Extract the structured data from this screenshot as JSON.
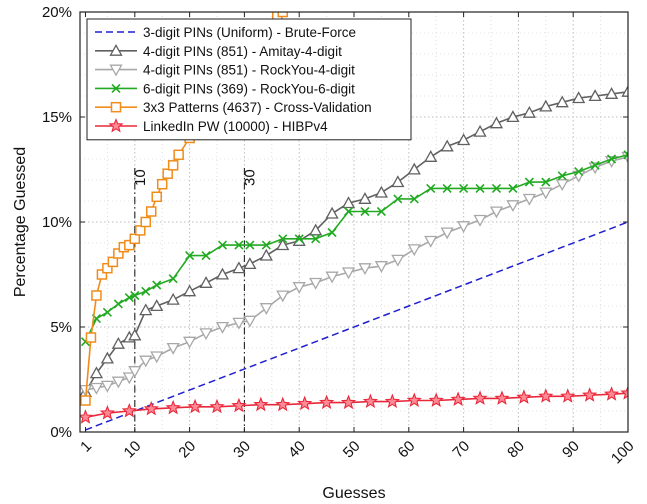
{
  "chart_data": {
    "type": "line",
    "xlabel": "Guesses",
    "ylabel": "Percentage Guessed",
    "xlim": [
      0,
      100
    ],
    "ylim": [
      0,
      20
    ],
    "x_ticks": [
      1,
      10,
      20,
      30,
      40,
      50,
      60,
      70,
      80,
      90,
      100
    ],
    "y_ticks": [
      0,
      5,
      10,
      15,
      20
    ],
    "y_tick_labels": [
      "0%",
      "5%",
      "10%",
      "15%",
      "20%"
    ],
    "grid": true,
    "legend_position": "top-left",
    "annotations": [
      {
        "x": 10,
        "text": "10"
      },
      {
        "x": 30,
        "text": "30"
      }
    ],
    "series": [
      {
        "name": "3-digit PINs (Uniform) - Brute-Force",
        "color": "#1f1fd0",
        "line": "dashed",
        "marker": "none",
        "x": [
          1,
          100
        ],
        "y": [
          0.1,
          10.0
        ]
      },
      {
        "name": "4-digit PINs (851) - Amitay-4-digit",
        "color": "#606060",
        "line": "solid",
        "marker": "triangle-up",
        "x": [
          1,
          3,
          5,
          7,
          9,
          10,
          12,
          14,
          17,
          20,
          23,
          26,
          29,
          31,
          34,
          37,
          40,
          43,
          46,
          49,
          52,
          55,
          58,
          61,
          64,
          67,
          70,
          73,
          76,
          79,
          82,
          85,
          88,
          91,
          94,
          97,
          100
        ],
        "y": [
          1.9,
          2.8,
          3.5,
          4.2,
          4.5,
          4.6,
          5.8,
          6.0,
          6.3,
          6.7,
          7.1,
          7.5,
          7.8,
          8.0,
          8.4,
          8.9,
          9.1,
          9.6,
          10.4,
          10.9,
          11.1,
          11.4,
          11.9,
          12.5,
          13.1,
          13.6,
          13.9,
          14.3,
          14.7,
          15.0,
          15.2,
          15.5,
          15.7,
          15.9,
          16.0,
          16.1,
          16.2
        ]
      },
      {
        "name": "4-digit PINs (851) - RockYou-4-digit",
        "color": "#a8a8a8",
        "line": "solid",
        "marker": "triangle-down",
        "x": [
          1,
          3,
          5,
          7,
          9,
          10,
          12,
          14,
          17,
          20,
          23,
          26,
          29,
          31,
          34,
          37,
          40,
          43,
          46,
          49,
          52,
          55,
          58,
          61,
          64,
          67,
          70,
          73,
          76,
          79,
          82,
          85,
          88,
          91,
          94,
          97,
          100
        ],
        "y": [
          2.0,
          2.1,
          2.2,
          2.4,
          2.6,
          2.9,
          3.4,
          3.6,
          4.0,
          4.3,
          4.7,
          5.0,
          5.2,
          5.3,
          5.9,
          6.5,
          6.9,
          7.1,
          7.4,
          7.6,
          7.8,
          7.9,
          8.2,
          8.7,
          9.1,
          9.5,
          9.8,
          10.1,
          10.5,
          10.8,
          11.1,
          11.4,
          11.8,
          12.2,
          12.6,
          12.9,
          13.1
        ]
      },
      {
        "name": "6-digit PINs (369) - RockYou-6-digit",
        "color": "#22aa22",
        "line": "solid",
        "marker": "x",
        "x": [
          1,
          3,
          5,
          7,
          9,
          10,
          12,
          14,
          17,
          20,
          23,
          26,
          29,
          31,
          34,
          37,
          40,
          43,
          46,
          49,
          52,
          55,
          58,
          61,
          64,
          67,
          70,
          73,
          76,
          79,
          82,
          85,
          88,
          91,
          94,
          97,
          100
        ],
        "y": [
          4.3,
          5.4,
          5.7,
          6.1,
          6.4,
          6.5,
          6.7,
          7.0,
          7.3,
          8.4,
          8.4,
          8.9,
          8.9,
          8.9,
          8.9,
          9.2,
          9.2,
          9.2,
          9.5,
          10.5,
          10.5,
          10.5,
          11.1,
          11.1,
          11.6,
          11.6,
          11.6,
          11.6,
          11.6,
          11.6,
          11.9,
          11.9,
          12.2,
          12.4,
          12.7,
          13.0,
          13.2
        ]
      },
      {
        "name": "3x3 Patterns (4637) - Cross-Validation",
        "color": "#f08c1a",
        "line": "solid",
        "marker": "square",
        "x": [
          1,
          2,
          3,
          4,
          5,
          6,
          7,
          8,
          9,
          10,
          11,
          12,
          13,
          14,
          15,
          16,
          17,
          18,
          20,
          22,
          24,
          26,
          28,
          30,
          32,
          34,
          36,
          37
        ],
        "y": [
          1.5,
          4.5,
          6.5,
          7.5,
          7.8,
          8.1,
          8.5,
          8.8,
          8.9,
          9.2,
          9.6,
          10.0,
          10.5,
          11.2,
          11.8,
          12.3,
          12.7,
          13.2,
          14.0,
          14.8,
          15.6,
          16.4,
          17.2,
          18.0,
          18.7,
          19.3,
          19.8,
          20.0
        ]
      },
      {
        "name": "LinkedIn PW (10000) - HIBPv4",
        "color": "#e8283a",
        "line": "solid",
        "marker": "star",
        "x": [
          1,
          5,
          9,
          13,
          17,
          21,
          25,
          29,
          33,
          37,
          41,
          45,
          49,
          53,
          57,
          61,
          65,
          69,
          73,
          77,
          81,
          85,
          89,
          93,
          97,
          100
        ],
        "y": [
          0.7,
          0.9,
          1.0,
          1.1,
          1.15,
          1.2,
          1.2,
          1.25,
          1.3,
          1.3,
          1.35,
          1.4,
          1.4,
          1.45,
          1.45,
          1.5,
          1.5,
          1.55,
          1.6,
          1.6,
          1.65,
          1.7,
          1.7,
          1.75,
          1.8,
          1.85
        ]
      }
    ]
  }
}
